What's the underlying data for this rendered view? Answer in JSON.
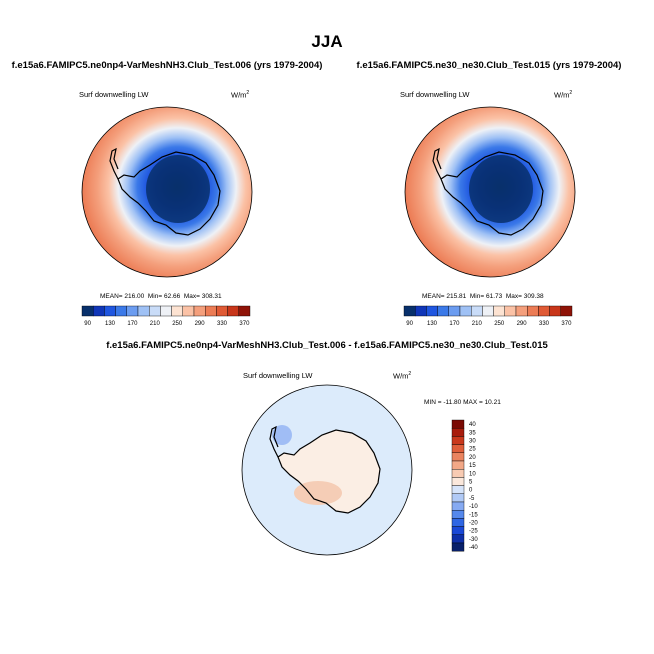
{
  "title": "JJA",
  "colors": {
    "hbar": [
      "#08306b",
      "#1036b8",
      "#1f56e0",
      "#3b79e8",
      "#6b9cf0",
      "#9fc1f5",
      "#c9dcf8",
      "#eef1f6",
      "#fde3d2",
      "#fbc2a6",
      "#f49f7c",
      "#ec7c55",
      "#e05a35",
      "#c8361a",
      "#8f1307"
    ],
    "diff": [
      "#08206a",
      "#0e2fa8",
      "#1a48d6",
      "#2f66e3",
      "#5588ec",
      "#86aaf2",
      "#b1caf6",
      "#d6e4fa",
      "#fbe8dc",
      "#f8cbb3",
      "#f2a887",
      "#ea8460",
      "#df5e3a",
      "#c9381c",
      "#a81c0c",
      "#7a0a04"
    ],
    "ocean_diff": "#dcebfb",
    "land_diff": "#fbeee4",
    "land_diff_warm": "#f5cdb6"
  },
  "chart_data": [
    {
      "type": "heatmap",
      "title": "f.e15a6.FAMIPC5.ne0np4-VarMeshNH3.Club_Test.006 (yrs 1979-2004)",
      "variable": "Surf downwelling LW",
      "units": "W/m",
      "units_sup": "2",
      "mean_text": "MEAN= 216.00",
      "min_text": "Min=  62.66",
      "max_text": "Max= 308.31",
      "mean": 216.0,
      "min": 62.66,
      "max": 308.31,
      "colorbar_levels": [
        90,
        110,
        130,
        150,
        170,
        190,
        210,
        230,
        250,
        270,
        290,
        310,
        330,
        350,
        370
      ],
      "colorbar_labels": [
        "90",
        "130",
        "170",
        "210",
        "250",
        "290",
        "330",
        "370"
      ]
    },
    {
      "type": "heatmap",
      "title": "f.e15a6.FAMIPC5.ne30_ne30.Club_Test.015 (yrs 1979-2004)",
      "variable": "Surf downwelling LW",
      "units": "W/m",
      "units_sup": "2",
      "mean_text": "MEAN= 215.81",
      "min_text": "Min=  61.73",
      "max_text": "Max= 309.38",
      "mean": 215.81,
      "min": 61.73,
      "max": 309.38,
      "colorbar_levels": [
        90,
        110,
        130,
        150,
        170,
        190,
        210,
        230,
        250,
        270,
        290,
        310,
        330,
        350,
        370
      ],
      "colorbar_labels": [
        "90",
        "130",
        "170",
        "210",
        "250",
        "290",
        "330",
        "370"
      ]
    },
    {
      "type": "heatmap",
      "title": "f.e15a6.FAMIPC5.ne0np4-VarMeshNH3.Club_Test.006 - f.e15a6.FAMIPC5.ne30_ne30.Club_Test.015",
      "variable": "Surf downwelling LW",
      "units": "W/m",
      "units_sup": "2",
      "minmax_text": "MIN = -11.80  MAX =  10.21",
      "min": -11.8,
      "max": 10.21,
      "colorbar_levels": [
        40,
        35,
        30,
        25,
        20,
        15,
        10,
        5,
        0,
        -5,
        -10,
        -15,
        -20,
        -25,
        -30,
        -40
      ],
      "colorbar_labels": [
        "40",
        "35",
        "30",
        "25",
        "20",
        "15",
        "10",
        "5",
        "0",
        "-5",
        "-10",
        "-15",
        "-20",
        "-25",
        "-30",
        "-40"
      ]
    }
  ]
}
